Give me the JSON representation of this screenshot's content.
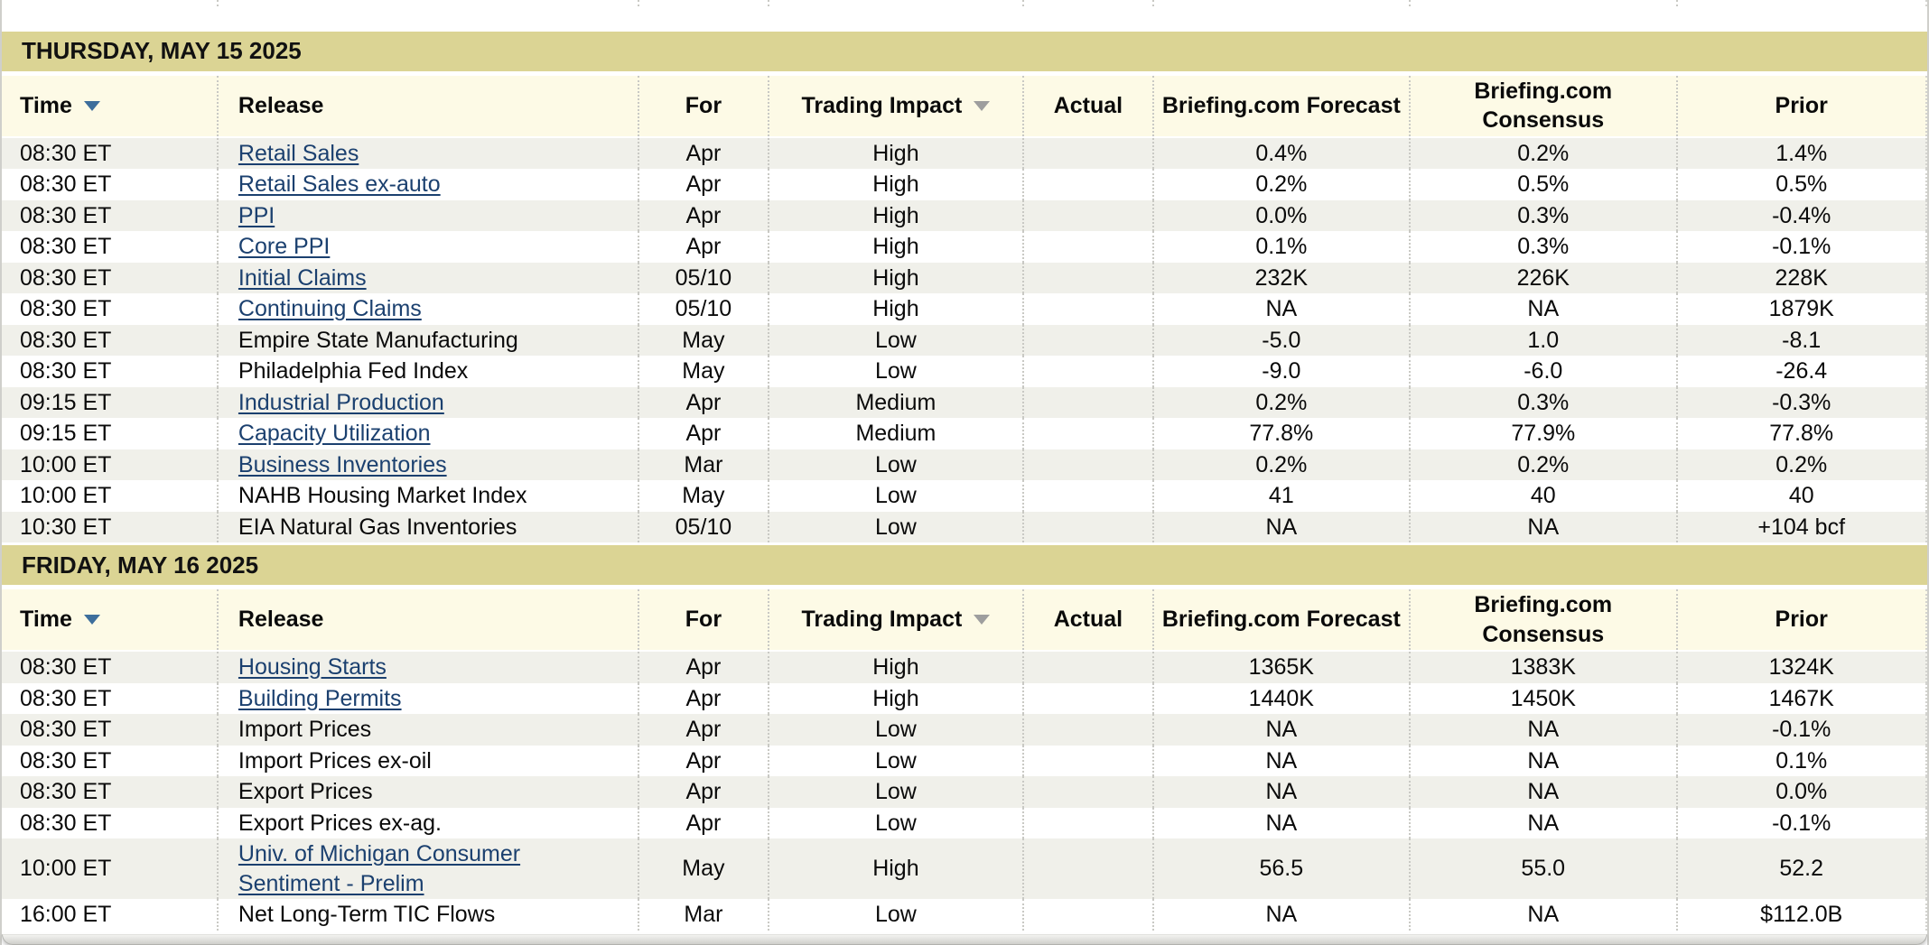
{
  "table": {
    "columns": [
      {
        "label": "Time",
        "sort_icon": "triangle-down-blue"
      },
      {
        "label": "Release",
        "sort_icon": null
      },
      {
        "label": "For",
        "sort_icon": null
      },
      {
        "label": "Trading Impact",
        "sort_icon": "triangle-down-gray"
      },
      {
        "label": "Actual",
        "sort_icon": null
      },
      {
        "label": "Briefing.com Forecast",
        "sort_icon": null
      },
      {
        "label": "Briefing.com Consensus",
        "sort_icon": null
      },
      {
        "label": "Prior",
        "sort_icon": null
      }
    ],
    "sections": [
      {
        "date_header": "THURSDAY, MAY 15 2025",
        "rows": [
          {
            "time": "08:30 ET",
            "release": "Retail Sales",
            "link": true,
            "for": "Apr",
            "impact": "High",
            "actual": "",
            "forecast": "0.4%",
            "consensus": "0.2%",
            "prior": "1.4%"
          },
          {
            "time": "08:30 ET",
            "release": "Retail Sales ex-auto",
            "link": true,
            "for": "Apr",
            "impact": "High",
            "actual": "",
            "forecast": "0.2%",
            "consensus": "0.5%",
            "prior": "0.5%"
          },
          {
            "time": "08:30 ET",
            "release": "PPI",
            "link": true,
            "for": "Apr",
            "impact": "High",
            "actual": "",
            "forecast": "0.0%",
            "consensus": "0.3%",
            "prior": "-0.4%"
          },
          {
            "time": "08:30 ET",
            "release": "Core PPI",
            "link": true,
            "for": "Apr",
            "impact": "High",
            "actual": "",
            "forecast": "0.1%",
            "consensus": "0.3%",
            "prior": "-0.1%"
          },
          {
            "time": "08:30 ET",
            "release": "Initial Claims",
            "link": true,
            "for": "05/10",
            "impact": "High",
            "actual": "",
            "forecast": "232K",
            "consensus": "226K",
            "prior": "228K"
          },
          {
            "time": "08:30 ET",
            "release": "Continuing Claims",
            "link": true,
            "for": "05/10",
            "impact": "High",
            "actual": "",
            "forecast": "NA",
            "consensus": "NA",
            "prior": "1879K"
          },
          {
            "time": "08:30 ET",
            "release": "Empire State Manufacturing",
            "link": false,
            "for": "May",
            "impact": "Low",
            "actual": "",
            "forecast": "-5.0",
            "consensus": "1.0",
            "prior": "-8.1"
          },
          {
            "time": "08:30 ET",
            "release": "Philadelphia Fed Index",
            "link": false,
            "for": "May",
            "impact": "Low",
            "actual": "",
            "forecast": "-9.0",
            "consensus": "-6.0",
            "prior": "-26.4"
          },
          {
            "time": "09:15 ET",
            "release": "Industrial Production",
            "link": true,
            "for": "Apr",
            "impact": "Medium",
            "actual": "",
            "forecast": "0.2%",
            "consensus": "0.3%",
            "prior": "-0.3%"
          },
          {
            "time": "09:15 ET",
            "release": "Capacity Utilization",
            "link": true,
            "for": "Apr",
            "impact": "Medium",
            "actual": "",
            "forecast": "77.8%",
            "consensus": "77.9%",
            "prior": "77.8%"
          },
          {
            "time": "10:00 ET",
            "release": "Business Inventories",
            "link": true,
            "for": "Mar",
            "impact": "Low",
            "actual": "",
            "forecast": "0.2%",
            "consensus": "0.2%",
            "prior": "0.2%"
          },
          {
            "time": "10:00 ET",
            "release": "NAHB Housing Market Index",
            "link": false,
            "for": "May",
            "impact": "Low",
            "actual": "",
            "forecast": "41",
            "consensus": "40",
            "prior": "40"
          },
          {
            "time": "10:30 ET",
            "release": "EIA Natural Gas Inventories",
            "link": false,
            "for": "05/10",
            "impact": "Low",
            "actual": "",
            "forecast": "NA",
            "consensus": "NA",
            "prior": "+104 bcf"
          }
        ]
      },
      {
        "date_header": "FRIDAY, MAY 16 2025",
        "rows": [
          {
            "time": "08:30 ET",
            "release": "Housing Starts",
            "link": true,
            "for": "Apr",
            "impact": "High",
            "actual": "",
            "forecast": "1365K",
            "consensus": "1383K",
            "prior": "1324K"
          },
          {
            "time": "08:30 ET",
            "release": "Building Permits",
            "link": true,
            "for": "Apr",
            "impact": "High",
            "actual": "",
            "forecast": "1440K",
            "consensus": "1450K",
            "prior": "1467K"
          },
          {
            "time": "08:30 ET",
            "release": "Import Prices",
            "link": false,
            "for": "Apr",
            "impact": "Low",
            "actual": "",
            "forecast": "NA",
            "consensus": "NA",
            "prior": "-0.1%"
          },
          {
            "time": "08:30 ET",
            "release": "Import Prices ex-oil",
            "link": false,
            "for": "Apr",
            "impact": "Low",
            "actual": "",
            "forecast": "NA",
            "consensus": "NA",
            "prior": "0.1%"
          },
          {
            "time": "08:30 ET",
            "release": "Export Prices",
            "link": false,
            "for": "Apr",
            "impact": "Low",
            "actual": "",
            "forecast": "NA",
            "consensus": "NA",
            "prior": "0.0%"
          },
          {
            "time": "08:30 ET",
            "release": "Export Prices ex-ag.",
            "link": false,
            "for": "Apr",
            "impact": "Low",
            "actual": "",
            "forecast": "NA",
            "consensus": "NA",
            "prior": "-0.1%"
          },
          {
            "time": "10:00 ET",
            "release": "Univ. of Michigan Consumer Sentiment - Prelim",
            "link": true,
            "for": "May",
            "impact": "High",
            "actual": "",
            "forecast": "56.5",
            "consensus": "55.0",
            "prior": "52.2"
          },
          {
            "time": "16:00 ET",
            "release": "Net Long-Term TIC Flows",
            "link": false,
            "for": "Mar",
            "impact": "Low",
            "actual": "",
            "forecast": "NA",
            "consensus": "NA",
            "prior": "$112.0B"
          }
        ]
      }
    ]
  },
  "colors": {
    "date_band_bg": "#dbd494",
    "header_row_bg": "#fdfae6",
    "stripe_row_bg": "#f0f0ea",
    "link_text": "#1b406f",
    "sort_arrow_active": "#3d6e9c",
    "sort_arrow_inactive": "#9e9e9e"
  }
}
